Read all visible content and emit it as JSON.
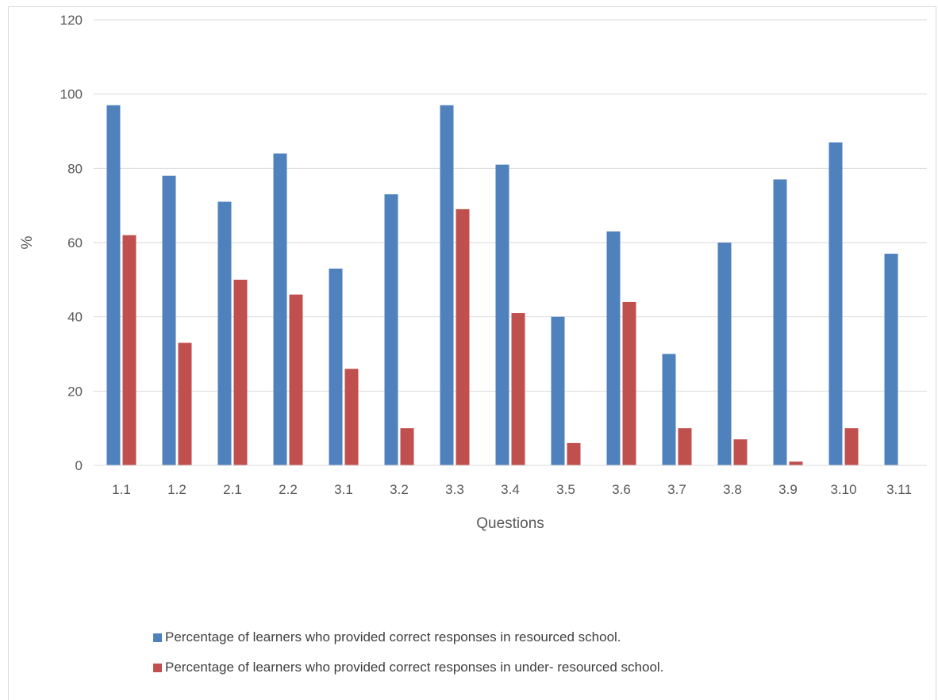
{
  "chart_data": {
    "type": "bar",
    "categories": [
      "1.1",
      "1.2",
      "2.1",
      "2.2",
      "3.1",
      "3.2",
      "3.3",
      "3.4",
      "3.5",
      "3.6",
      "3.7",
      "3.8",
      "3.9",
      "3.10",
      "3.11"
    ],
    "series": [
      {
        "name": "Percentage of learners who provided correct responses in resourced school.",
        "color": "#4f81bd",
        "values": [
          97,
          78,
          71,
          84,
          53,
          73,
          97,
          81,
          40,
          63,
          30,
          60,
          77,
          87,
          57
        ]
      },
      {
        "name": "Percentage of learners who provided correct responses in under- resourced school.",
        "color": "#c0504d",
        "values": [
          62,
          33,
          50,
          46,
          26,
          10,
          69,
          41,
          6,
          44,
          10,
          7,
          1,
          10,
          null
        ]
      }
    ],
    "xlabel": "Questions",
    "ylabel": "%",
    "ylim": [
      0,
      120
    ],
    "yticks": [
      "0",
      "20",
      "40",
      "60",
      "80",
      "100",
      "120"
    ],
    "grid": true,
    "legend_position": "bottom"
  }
}
